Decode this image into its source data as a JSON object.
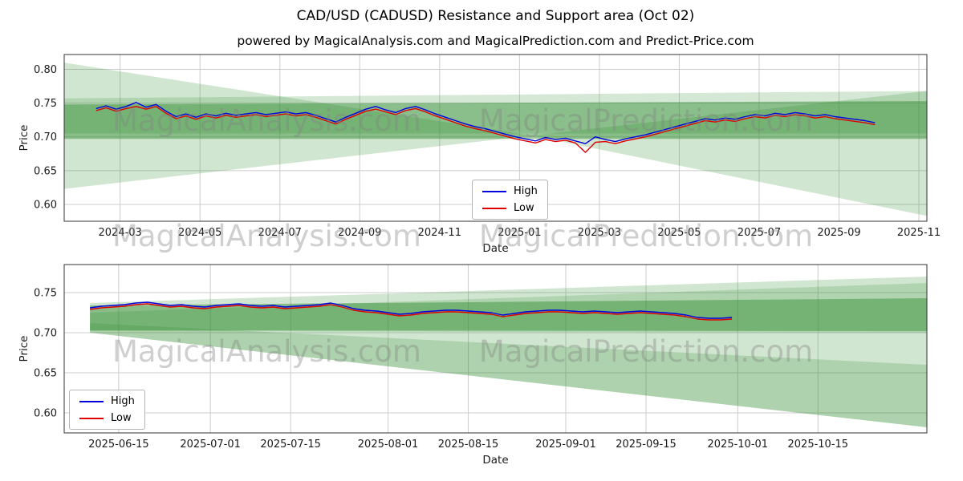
{
  "title": "CAD/USD (CADUSD) Resistance and Support area (Oct 02)",
  "subtitle": "powered by MagicalAnalysis.com and MagicalPrediction.com and Predict-Price.com",
  "watermarks": [
    "MagicalAnalysis.com",
    "MagicalPrediction.com"
  ],
  "colors": {
    "high": "#0000dd",
    "low": "#e00000",
    "band": "#2e8b2e",
    "grid": "#cccccc",
    "spine": "#333333",
    "watermark": "#808080"
  },
  "chart_data": [
    {
      "type": "line",
      "title": "",
      "xlabel": "Date",
      "ylabel": "Price",
      "x_unit_note": "months since 2024-01-01",
      "xlim": [
        0.6,
        22.2
      ],
      "ylim": [
        0.575,
        0.822
      ],
      "grid": true,
      "yticks": [
        {
          "v": 0.6,
          "label": "0.60"
        },
        {
          "v": 0.65,
          "label": "0.65"
        },
        {
          "v": 0.7,
          "label": "0.70"
        },
        {
          "v": 0.75,
          "label": "0.75"
        },
        {
          "v": 0.8,
          "label": "0.80"
        }
      ],
      "xticks": [
        {
          "v": 2,
          "label": "2024-03"
        },
        {
          "v": 4,
          "label": "2024-05"
        },
        {
          "v": 6,
          "label": "2024-07"
        },
        {
          "v": 8,
          "label": "2024-09"
        },
        {
          "v": 10,
          "label": "2024-11"
        },
        {
          "v": 12,
          "label": "2025-01"
        },
        {
          "v": 14,
          "label": "2025-03"
        },
        {
          "v": 16,
          "label": "2025-05"
        },
        {
          "v": 18,
          "label": "2025-07"
        },
        {
          "v": 20,
          "label": "2025-09"
        },
        {
          "v": 22,
          "label": "2025-11"
        }
      ],
      "legend": {
        "position": "lower center",
        "entries": [
          "High",
          "Low"
        ]
      },
      "bands": [
        {
          "alpha": 0.22,
          "points": [
            [
              0.6,
              0.81
            ],
            [
              12.3,
              0.702
            ],
            [
              0.6,
              0.623
            ]
          ]
        },
        {
          "alpha": 0.22,
          "points": [
            [
              22.2,
              0.768
            ],
            [
              12.3,
              0.702
            ],
            [
              22.2,
              0.583
            ]
          ]
        },
        {
          "alpha": 0.2,
          "points": [
            [
              0.6,
              0.757
            ],
            [
              22.2,
              0.768
            ],
            [
              22.2,
              0.705
            ],
            [
              0.6,
              0.705
            ]
          ]
        },
        {
          "alpha": 0.45,
          "points": [
            [
              0.6,
              0.748
            ],
            [
              22.2,
              0.753
            ],
            [
              22.2,
              0.697
            ],
            [
              0.6,
              0.697
            ]
          ]
        }
      ],
      "series": [
        {
          "name": "High",
          "color": "#0000dd",
          "x": [
            1.4,
            1.65,
            1.9,
            2.15,
            2.4,
            2.65,
            2.9,
            3.15,
            3.4,
            3.65,
            3.9,
            4.15,
            4.4,
            4.65,
            4.9,
            5.15,
            5.4,
            5.65,
            5.9,
            6.15,
            6.4,
            6.65,
            6.9,
            7.15,
            7.4,
            7.65,
            7.9,
            8.15,
            8.4,
            8.65,
            8.9,
            9.15,
            9.4,
            9.65,
            9.9,
            10.15,
            10.4,
            10.65,
            10.9,
            11.15,
            11.4,
            11.65,
            11.9,
            12.15,
            12.4,
            12.65,
            12.9,
            13.15,
            13.4,
            13.65,
            13.9,
            14.15,
            14.4,
            14.65,
            14.9,
            15.15,
            15.4,
            15.65,
            15.9,
            16.15,
            16.4,
            16.65,
            16.9,
            17.15,
            17.4,
            17.65,
            17.9,
            18.15,
            18.4,
            18.65,
            18.9,
            19.15,
            19.4,
            19.65,
            19.9,
            20.15,
            20.4,
            20.65,
            20.9
          ],
          "y": [
            0.742,
            0.746,
            0.741,
            0.745,
            0.751,
            0.744,
            0.748,
            0.738,
            0.73,
            0.734,
            0.729,
            0.734,
            0.731,
            0.735,
            0.732,
            0.734,
            0.736,
            0.733,
            0.735,
            0.737,
            0.734,
            0.736,
            0.732,
            0.727,
            0.722,
            0.729,
            0.735,
            0.741,
            0.745,
            0.74,
            0.736,
            0.742,
            0.745,
            0.74,
            0.734,
            0.729,
            0.724,
            0.719,
            0.715,
            0.712,
            0.708,
            0.704,
            0.7,
            0.697,
            0.694,
            0.699,
            0.696,
            0.698,
            0.694,
            0.69,
            0.7,
            0.696,
            0.693,
            0.697,
            0.7,
            0.703,
            0.707,
            0.711,
            0.715,
            0.719,
            0.723,
            0.727,
            0.725,
            0.728,
            0.726,
            0.73,
            0.733,
            0.731,
            0.735,
            0.733,
            0.736,
            0.734,
            0.731,
            0.733,
            0.73,
            0.728,
            0.726,
            0.724,
            0.721
          ]
        },
        {
          "name": "Low",
          "color": "#e00000",
          "x": [
            1.4,
            1.65,
            1.9,
            2.15,
            2.4,
            2.65,
            2.9,
            3.15,
            3.4,
            3.65,
            3.9,
            4.15,
            4.4,
            4.65,
            4.9,
            5.15,
            5.4,
            5.65,
            5.9,
            6.15,
            6.4,
            6.65,
            6.9,
            7.15,
            7.4,
            7.65,
            7.9,
            8.15,
            8.4,
            8.65,
            8.9,
            9.15,
            9.4,
            9.65,
            9.9,
            10.15,
            10.4,
            10.65,
            10.9,
            11.15,
            11.4,
            11.65,
            11.9,
            12.15,
            12.4,
            12.65,
            12.9,
            13.15,
            13.4,
            13.65,
            13.9,
            14.15,
            14.4,
            14.65,
            14.9,
            15.15,
            15.4,
            15.65,
            15.9,
            16.15,
            16.4,
            16.65,
            16.9,
            17.15,
            17.4,
            17.65,
            17.9,
            18.15,
            18.4,
            18.65,
            18.9,
            19.15,
            19.4,
            19.65,
            19.9,
            20.15,
            20.4,
            20.65,
            20.9
          ],
          "y": [
            0.739,
            0.743,
            0.738,
            0.742,
            0.745,
            0.741,
            0.745,
            0.735,
            0.727,
            0.731,
            0.726,
            0.731,
            0.728,
            0.732,
            0.729,
            0.731,
            0.733,
            0.73,
            0.732,
            0.734,
            0.731,
            0.733,
            0.729,
            0.724,
            0.719,
            0.726,
            0.732,
            0.738,
            0.741,
            0.737,
            0.733,
            0.739,
            0.742,
            0.737,
            0.731,
            0.726,
            0.721,
            0.716,
            0.712,
            0.709,
            0.705,
            0.701,
            0.697,
            0.694,
            0.691,
            0.696,
            0.693,
            0.695,
            0.691,
            0.677,
            0.692,
            0.693,
            0.69,
            0.694,
            0.697,
            0.7,
            0.704,
            0.708,
            0.712,
            0.716,
            0.72,
            0.724,
            0.722,
            0.725,
            0.723,
            0.727,
            0.73,
            0.728,
            0.732,
            0.73,
            0.733,
            0.731,
            0.728,
            0.73,
            0.727,
            0.725,
            0.723,
            0.721,
            0.718
          ]
        }
      ]
    },
    {
      "type": "line",
      "title": "",
      "xlabel": "Date",
      "ylabel": "Price",
      "x_unit_note": "days since 2025-06-01",
      "xlim": [
        4.5,
        155
      ],
      "ylim": [
        0.575,
        0.785
      ],
      "grid": true,
      "yticks": [
        {
          "v": 0.6,
          "label": "0.60"
        },
        {
          "v": 0.65,
          "label": "0.65"
        },
        {
          "v": 0.7,
          "label": "0.70"
        },
        {
          "v": 0.75,
          "label": "0.75"
        }
      ],
      "xticks": [
        {
          "v": 14,
          "label": "2025-06-15"
        },
        {
          "v": 30,
          "label": "2025-07-01"
        },
        {
          "v": 44,
          "label": "2025-07-15"
        },
        {
          "v": 61,
          "label": "2025-08-01"
        },
        {
          "v": 75,
          "label": "2025-08-15"
        },
        {
          "v": 92,
          "label": "2025-09-01"
        },
        {
          "v": 106,
          "label": "2025-09-15"
        },
        {
          "v": 122,
          "label": "2025-10-01"
        },
        {
          "v": 136,
          "label": "2025-10-15"
        }
      ],
      "legend": {
        "position": "lower left",
        "entries": [
          "High",
          "Low"
        ]
      },
      "bands": [
        {
          "alpha": 0.22,
          "points": [
            [
              9,
              0.737
            ],
            [
              155,
              0.77
            ],
            [
              155,
              0.582
            ],
            [
              9,
              0.7
            ]
          ]
        },
        {
          "alpha": 0.22,
          "points": [
            [
              9,
              0.712
            ],
            [
              155,
              0.66
            ],
            [
              155,
              0.582
            ],
            [
              9,
              0.7
            ]
          ]
        },
        {
          "alpha": 0.2,
          "points": [
            [
              9,
              0.725
            ],
            [
              155,
              0.762
            ],
            [
              155,
              0.7
            ],
            [
              9,
              0.702
            ]
          ]
        },
        {
          "alpha": 0.45,
          "points": [
            [
              9,
              0.734
            ],
            [
              155,
              0.743
            ],
            [
              155,
              0.702
            ],
            [
              9,
              0.703
            ]
          ]
        }
      ],
      "series": [
        {
          "name": "High",
          "color": "#0000dd",
          "x": [
            9,
            11,
            13,
            15,
            17,
            19,
            21,
            23,
            25,
            27,
            29,
            31,
            33,
            35,
            37,
            39,
            41,
            43,
            45,
            47,
            49,
            51,
            53,
            55,
            57,
            59,
            61,
            63,
            65,
            67,
            69,
            71,
            73,
            75,
            77,
            79,
            81,
            83,
            85,
            87,
            89,
            91,
            93,
            95,
            97,
            99,
            101,
            103,
            105,
            107,
            109,
            111,
            113,
            115,
            117,
            119,
            121
          ],
          "y": [
            0.731,
            0.733,
            0.734,
            0.735,
            0.737,
            0.738,
            0.736,
            0.734,
            0.735,
            0.733,
            0.732,
            0.734,
            0.735,
            0.736,
            0.734,
            0.733,
            0.734,
            0.732,
            0.733,
            0.734,
            0.735,
            0.737,
            0.734,
            0.73,
            0.728,
            0.727,
            0.725,
            0.723,
            0.724,
            0.726,
            0.727,
            0.728,
            0.728,
            0.727,
            0.726,
            0.725,
            0.722,
            0.724,
            0.726,
            0.727,
            0.728,
            0.728,
            0.727,
            0.726,
            0.727,
            0.726,
            0.725,
            0.726,
            0.727,
            0.726,
            0.725,
            0.724,
            0.722,
            0.719,
            0.718,
            0.718,
            0.719
          ]
        },
        {
          "name": "Low",
          "color": "#e00000",
          "x": [
            9,
            11,
            13,
            15,
            17,
            19,
            21,
            23,
            25,
            27,
            29,
            31,
            33,
            35,
            37,
            39,
            41,
            43,
            45,
            47,
            49,
            51,
            53,
            55,
            57,
            59,
            61,
            63,
            65,
            67,
            69,
            71,
            73,
            75,
            77,
            79,
            81,
            83,
            85,
            87,
            89,
            91,
            93,
            95,
            97,
            99,
            101,
            103,
            105,
            107,
            109,
            111,
            113,
            115,
            117,
            119,
            121
          ],
          "y": [
            0.729,
            0.731,
            0.732,
            0.733,
            0.735,
            0.736,
            0.734,
            0.732,
            0.733,
            0.731,
            0.73,
            0.732,
            0.733,
            0.734,
            0.732,
            0.731,
            0.732,
            0.73,
            0.731,
            0.732,
            0.733,
            0.735,
            0.732,
            0.728,
            0.726,
            0.725,
            0.723,
            0.721,
            0.722,
            0.724,
            0.725,
            0.726,
            0.726,
            0.725,
            0.724,
            0.723,
            0.72,
            0.722,
            0.724,
            0.725,
            0.726,
            0.726,
            0.725,
            0.724,
            0.725,
            0.724,
            0.723,
            0.724,
            0.725,
            0.724,
            0.723,
            0.722,
            0.72,
            0.717,
            0.716,
            0.716,
            0.717
          ]
        }
      ]
    }
  ]
}
